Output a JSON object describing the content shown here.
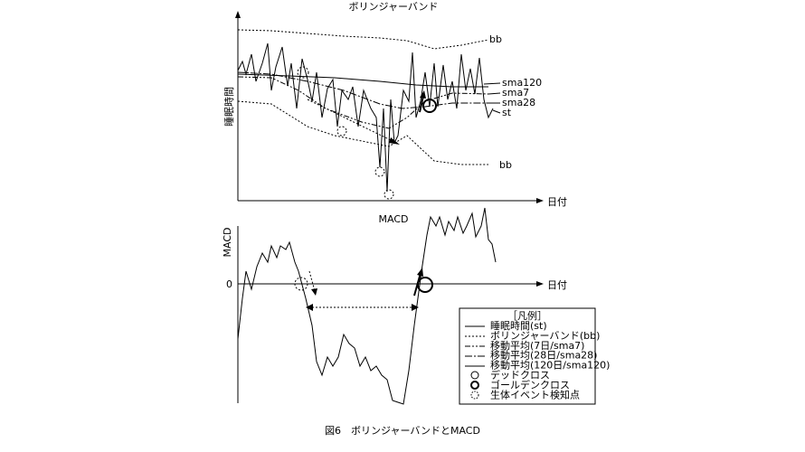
{
  "figure": {
    "top": {
      "title": "ボリンジャーバンド",
      "y_label": "睡眠時間",
      "x_label": "日付",
      "line_labels": {
        "bb_upper": "bb",
        "sma120": "sma120",
        "sma7": "sma7",
        "sma28": "sma28",
        "st": "st",
        "bb_lower": "bb"
      }
    },
    "bottom": {
      "title": "MACD",
      "y_label": "MACD",
      "zero_label": "0",
      "x_label": "日付"
    },
    "legend": {
      "title": "［凡例］",
      "items": [
        "睡眠時間(st)",
        "ボリンジャーバンド(bb)",
        "移動平均(7日/sma7)",
        "移動平均(28日/sma28)",
        "移動平均(120日/sma120)",
        "デッドクロス",
        "ゴールデンクロス",
        "生体イベント検知点"
      ]
    },
    "caption": "図6　ボリンジャーバンドとMACD"
  }
}
